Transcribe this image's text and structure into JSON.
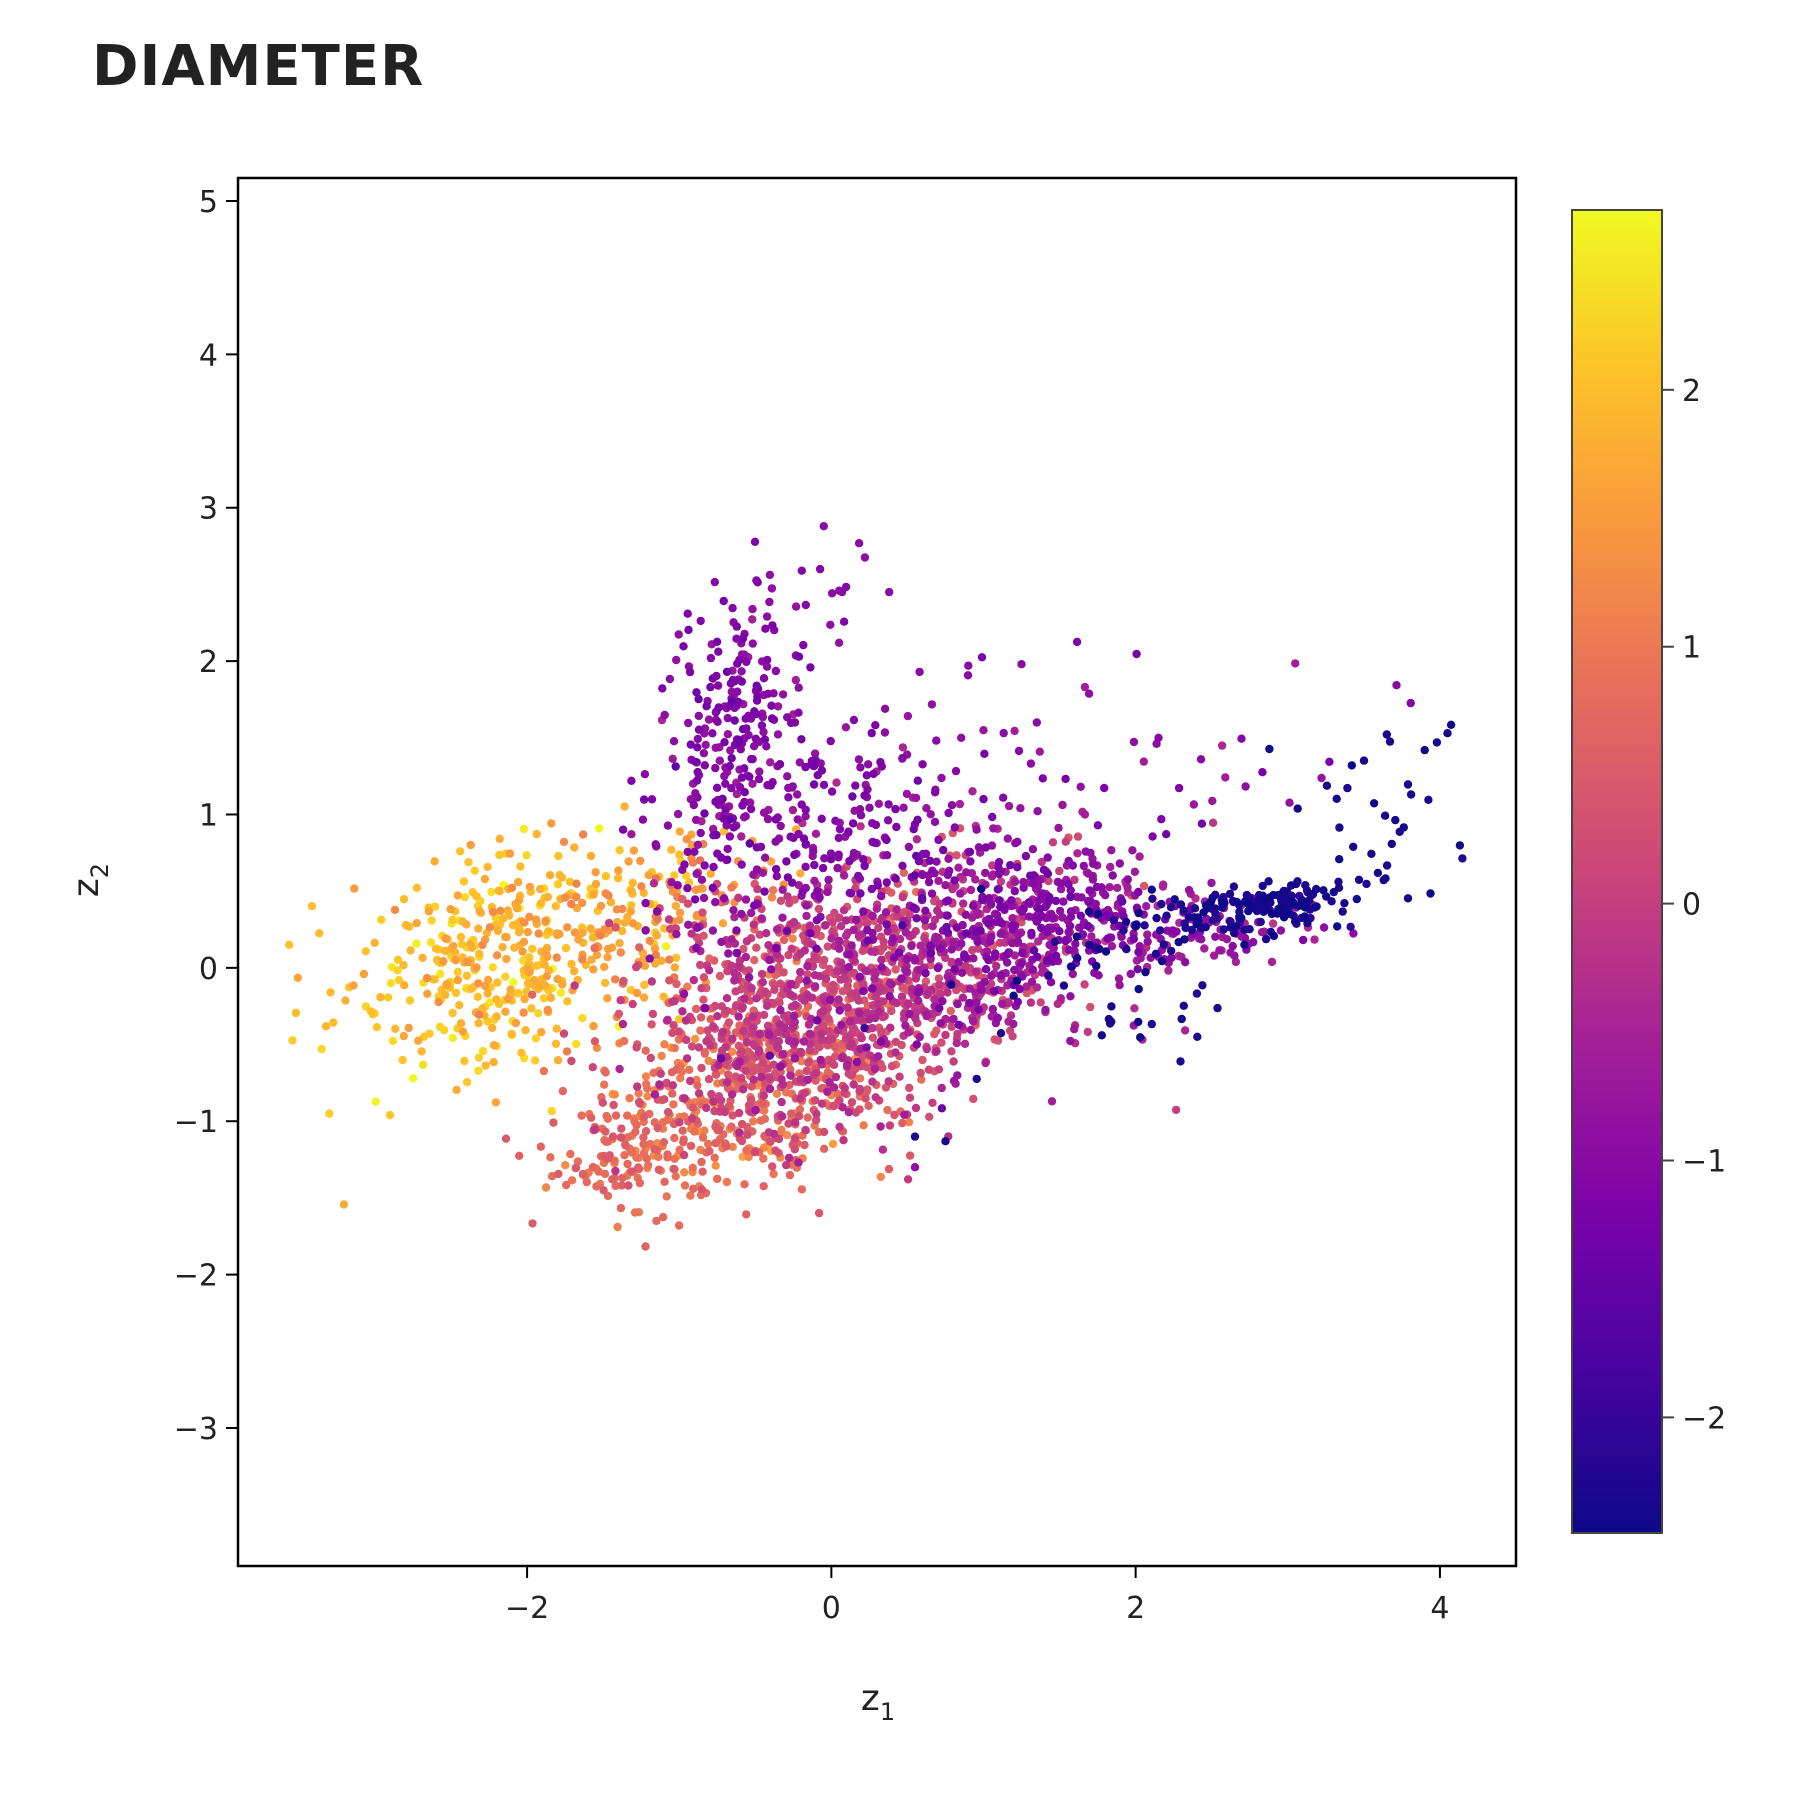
{
  "chart_data": {
    "type": "scatter",
    "title": "DIAMETER",
    "xlabel": "z",
    "xlabel_sub": "1",
    "ylabel": "z",
    "ylabel_sub": "2",
    "xlim": [
      -3.9,
      4.5
    ],
    "ylim": [
      -3.9,
      5.15
    ],
    "xticks": [
      -2,
      0,
      2,
      4
    ],
    "xtick_labels": [
      "−2",
      "0",
      "2",
      "4"
    ],
    "yticks": [
      -3,
      -2,
      -1,
      0,
      1,
      2,
      3,
      4,
      5
    ],
    "ytick_labels": [
      "−3",
      "−2",
      "−1",
      "0",
      "1",
      "2",
      "3",
      "4",
      "5"
    ],
    "colorbar": {
      "colorscale": "plasma",
      "range": [
        -2.45,
        2.7
      ],
      "ticks": [
        -2,
        -1,
        0,
        1,
        2
      ],
      "tick_labels": [
        "−2",
        "−1",
        "0",
        "1",
        "2"
      ]
    },
    "grid": false,
    "legend": "none",
    "clusters": [
      {
        "name": "yellow-left",
        "center": [
          -2.2,
          0.05
        ],
        "spread": [
          0.55,
          0.33
        ],
        "rotation_deg": 20,
        "count": 380,
        "color_value": 2.0,
        "color_spread": 0.3
      },
      {
        "name": "orange-band",
        "center": [
          -1.3,
          0.35
        ],
        "spread": [
          0.45,
          0.25
        ],
        "rotation_deg": 20,
        "count": 160,
        "color_value": 1.5,
        "color_spread": 0.35
      },
      {
        "name": "central-dense",
        "center": [
          -0.1,
          -0.25
        ],
        "spread": [
          0.55,
          0.4
        ],
        "rotation_deg": 20,
        "count": 1000,
        "color_value": 0.15,
        "color_spread": 0.35
      },
      {
        "name": "lower-orange",
        "center": [
          -0.6,
          -0.85
        ],
        "spread": [
          0.5,
          0.3
        ],
        "rotation_deg": 10,
        "count": 380,
        "color_value": 0.85,
        "color_spread": 0.3
      },
      {
        "name": "lower-left-tail",
        "center": [
          -1.3,
          -1.25
        ],
        "spread": [
          0.25,
          0.18
        ],
        "rotation_deg": 0,
        "count": 110,
        "color_value": 0.75,
        "color_spread": 0.2
      },
      {
        "name": "mid-right",
        "center": [
          0.9,
          0.1
        ],
        "spread": [
          0.6,
          0.35
        ],
        "rotation_deg": 15,
        "count": 520,
        "color_value": -0.45,
        "color_spread": 0.4
      },
      {
        "name": "upper-arm",
        "center": [
          -0.6,
          1.15
        ],
        "spread": [
          0.35,
          0.55
        ],
        "rotation_deg": 0,
        "count": 240,
        "color_value": -1.0,
        "color_spread": 0.2
      },
      {
        "name": "upper-arm-top",
        "center": [
          -0.65,
          1.85
        ],
        "spread": [
          0.2,
          0.35
        ],
        "rotation_deg": 0,
        "count": 90,
        "color_value": -1.05,
        "color_spread": 0.15
      },
      {
        "name": "upper-spike",
        "center": [
          -0.2,
          2.5
        ],
        "spread": [
          0.18,
          0.22
        ],
        "rotation_deg": 0,
        "count": 16,
        "color_value": -1.0,
        "color_spread": 0.1
      },
      {
        "name": "upper-mid",
        "center": [
          0.3,
          0.85
        ],
        "spread": [
          0.5,
          0.3
        ],
        "rotation_deg": 0,
        "count": 180,
        "color_value": -1.0,
        "color_spread": 0.2
      },
      {
        "name": "right-purple",
        "center": [
          1.4,
          0.3
        ],
        "spread": [
          0.35,
          0.2
        ],
        "rotation_deg": 10,
        "count": 200,
        "color_value": -1.0,
        "color_spread": 0.2
      },
      {
        "name": "right-magenta",
        "center": [
          2.5,
          0.25
        ],
        "spread": [
          0.3,
          0.12
        ],
        "rotation_deg": 0,
        "count": 90,
        "color_value": -0.8,
        "color_spread": 0.2
      },
      {
        "name": "sparse-upper-right",
        "center": [
          1.8,
          1.05
        ],
        "spread": [
          0.9,
          0.45
        ],
        "rotation_deg": 0,
        "count": 60,
        "color_value": -0.9,
        "color_spread": 0.25
      },
      {
        "name": "navy-tail",
        "center": [
          2.7,
          0.38
        ],
        "spread": [
          0.45,
          0.08
        ],
        "rotation_deg": 6,
        "count": 130,
        "color_value": -2.3,
        "color_spread": 0.1
      },
      {
        "name": "navy-head",
        "center": [
          2.95,
          0.43
        ],
        "spread": [
          0.1,
          0.05
        ],
        "rotation_deg": 0,
        "count": 50,
        "color_value": -2.35,
        "color_spread": 0.05
      },
      {
        "name": "navy-upturn",
        "center": [
          3.65,
          1.05
        ],
        "spread": [
          0.3,
          0.3
        ],
        "rotation_deg": 40,
        "count": 30,
        "color_value": -2.35,
        "color_spread": 0.05
      },
      {
        "name": "navy-scatter",
        "center": [
          1.9,
          -0.1
        ],
        "spread": [
          0.5,
          0.3
        ],
        "rotation_deg": 0,
        "count": 40,
        "color_value": -2.3,
        "color_spread": 0.1
      }
    ],
    "outliers": [
      {
        "x": -0.05,
        "y": 2.88,
        "c": -1.0
      },
      {
        "x": 0.38,
        "y": 2.45,
        "c": -1.0
      },
      {
        "x": 1.25,
        "y": 1.98,
        "c": -1.0
      },
      {
        "x": 0.9,
        "y": 1.97,
        "c": -1.0
      },
      {
        "x": 0.58,
        "y": 1.93,
        "c": -1.0
      },
      {
        "x": 1.35,
        "y": 1.6,
        "c": -1.0
      },
      {
        "x": 2.15,
        "y": 1.5,
        "c": -1.0
      },
      {
        "x": 4.05,
        "y": 1.53,
        "c": -2.35
      },
      {
        "x": 3.98,
        "y": 1.47,
        "c": -2.35
      },
      {
        "x": 3.9,
        "y": 1.42,
        "c": -2.35
      },
      {
        "x": 0.55,
        "y": -1.1,
        "c": -2.3
      },
      {
        "x": 0.75,
        "y": -1.13,
        "c": -2.3
      },
      {
        "x": -1.0,
        "y": -1.68,
        "c": 0.8
      },
      {
        "x": -1.15,
        "y": -1.65,
        "c": 0.8
      },
      {
        "x": -3.35,
        "y": -0.53,
        "c": 2.3
      },
      {
        "x": -3.3,
        "y": -0.95,
        "c": 2.2
      },
      {
        "x": -2.9,
        "y": -0.96,
        "c": 2.1
      },
      {
        "x": -2.75,
        "y": -0.72,
        "c": 2.7
      },
      {
        "x": 1.45,
        "y": -0.87,
        "c": -0.6
      },
      {
        "x": 0.55,
        "y": -1.3,
        "c": -0.9
      }
    ]
  }
}
